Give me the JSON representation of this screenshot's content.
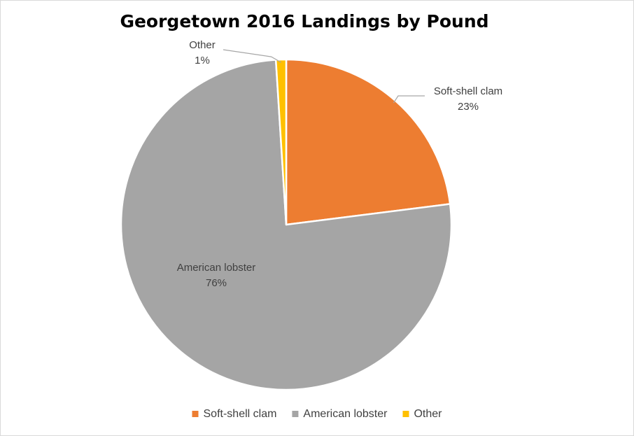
{
  "chart_data": {
    "type": "pie",
    "title": "Georgetown 2016 Landings by Pound",
    "slices": [
      {
        "label": "Soft-shell clam",
        "value": 23,
        "display": "23%",
        "color": "#ed7d31"
      },
      {
        "label": "American lobster",
        "value": 76,
        "display": "76%",
        "color": "#a5a5a5"
      },
      {
        "label": "Other",
        "value": 1,
        "display": "1%",
        "color": "#ffc000"
      }
    ],
    "legend": {
      "position": "bottom",
      "entries": [
        "Soft-shell clam",
        "American lobster",
        "Other"
      ]
    }
  }
}
